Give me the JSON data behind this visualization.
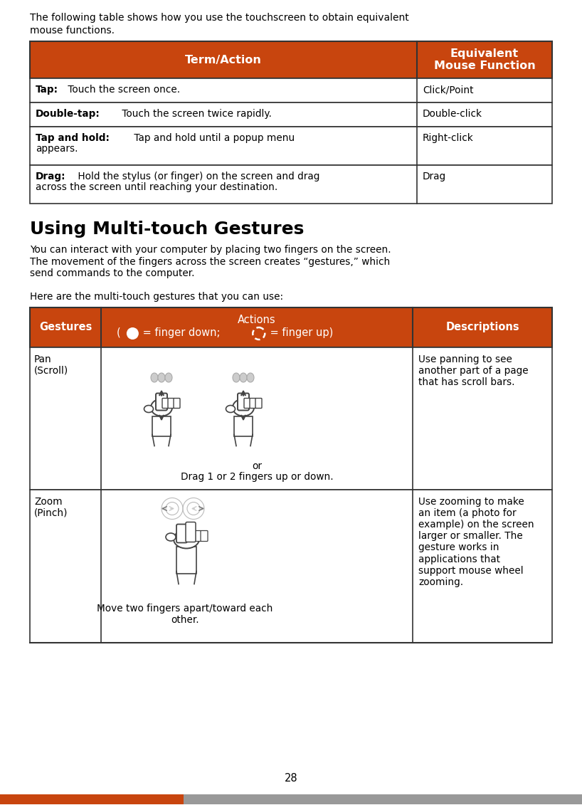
{
  "bg_color": "#ffffff",
  "page_number": "28",
  "header_color": "#c8450e",
  "border_color": "#333333",
  "text_color": "#000000",
  "header_text_color": "#ffffff",
  "intro_line1": "The following table shows how you use the touchscreen to obtain equivalent",
  "intro_line2": "mouse functions.",
  "t1_hdr1": "Term/Action",
  "t1_hdr2": "Equivalent\nMouse Function",
  "t1_rows": [
    {
      "bold": "Tap:",
      "normal": " Touch the screen once.",
      "right": "Click/Point"
    },
    {
      "bold": "Double-tap:",
      "normal": " Touch the screen twice rapidly.",
      "right": "Double-click"
    },
    {
      "bold": "Tap and hold:",
      "normal": " Tap and hold until a popup menu\n    appears.",
      "right": "Right-click"
    },
    {
      "bold": "Drag:",
      "normal": " Hold the stylus (or finger) on the screen and drag\n    across the screen until reaching your destination.",
      "right": "Drag"
    }
  ],
  "section_title": "Using Multi-touch Gestures",
  "para1_lines": [
    "You can interact with your computer by placing two fingers on the screen.",
    "The movement of the fingers across the screen creates “gestures,” which",
    "send commands to the computer."
  ],
  "para2": "Here are the multi-touch gestures that you can use:",
  "t2_hdr1": "Gestures",
  "t2_hdr2_top": "Actions",
  "t2_hdr2_bottom": "( O = finger down;   = finger up)",
  "t2_hdr3": "Descriptions",
  "t2_row1_gest": "Pan\n(Scroll)",
  "t2_row1_action_bottom": "or\nDrag 1 or 2 fingers up or down.",
  "t2_row1_desc": "Use panning to see\nanother part of a page\nthat has scroll bars.",
  "t2_row2_gest": "Zoom\n(Pinch)",
  "t2_row2_action_bottom": "Move two fingers apart/toward each\nother.",
  "t2_row2_desc": "Use zooming to make\nan item (a photo for\nexample) on the screen\nlarger or smaller. The\ngesture works in\napplications that\nsupport mouse wheel\nzooming.",
  "footer_orange": "#c8450e",
  "footer_gray": "#999999"
}
